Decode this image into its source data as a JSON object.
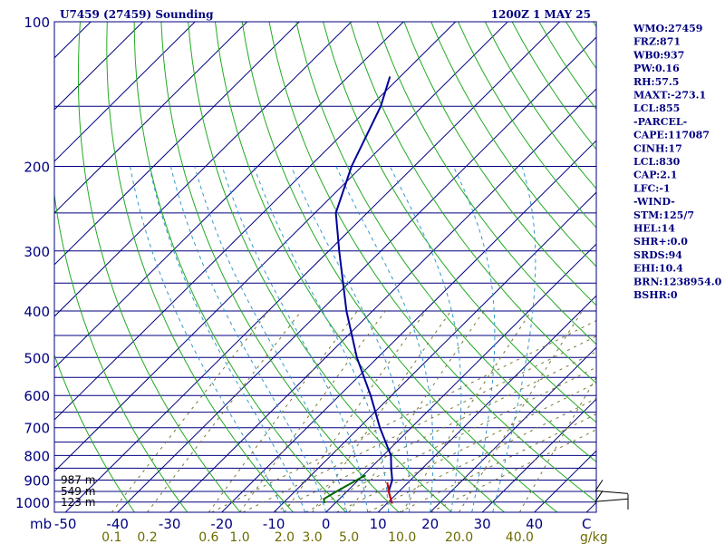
{
  "header": {
    "left_title": "U7459 (27459) Sounding",
    "right_title": "1200Z  1 MAY 25"
  },
  "indices": [
    "WMO:27459",
    "FRZ:871",
    "WB0:937",
    "PW:0.16",
    "RH:57.5",
    "MAXT:-273.1",
    "LCL:855",
    "-PARCEL-",
    "CAPE:117087",
    "CINH:17",
    "LCL:830",
    "CAP:2.1",
    "LFC:-1",
    "-WIND-",
    "STM:125/7",
    "HEL:14",
    "SHR+:0.0",
    "SRDS:94",
    "EHI:10.4",
    "BRN:1238954.0",
    "BSHR:0"
  ],
  "colors": {
    "frame": "#000080",
    "isobar": "#000080",
    "isotherm": "#000080",
    "dry_adiabat": "#22aa22",
    "moist_adiabat": "#3399cc",
    "mixing_ratio": "#777733",
    "temperature": "#000099",
    "parcel": "#cc0000",
    "dewpoint": "#006600",
    "wind": "#000000"
  },
  "chart_data": {
    "type": "line",
    "title": "U7459 (27459) Sounding",
    "subtitle": "1200Z  1 MAY 25",
    "x_axis": {
      "unit_label": "mb",
      "range": [
        -50,
        50
      ],
      "ticks": [
        -50,
        -40,
        -30,
        -20,
        -10,
        0,
        10,
        20,
        30,
        40,
        50
      ],
      "tick_labels": [
        "-50",
        "-40",
        "-30",
        "-20",
        "-10",
        "0",
        "10",
        "20",
        "30",
        "40",
        "C"
      ]
    },
    "y_axis": {
      "scale": "log",
      "range": [
        1050,
        100
      ],
      "ticks": [
        100,
        200,
        300,
        400,
        500,
        600,
        700,
        800,
        900,
        1000
      ],
      "tick_labels": [
        "100",
        "200",
        "300",
        "400",
        "500",
        "600",
        "700",
        "800",
        "900",
        "1000"
      ]
    },
    "mixing_ratio_labels": {
      "unit": "g/kg",
      "values": [
        0.1,
        0.2,
        0.6,
        1.0,
        2.0,
        3.0,
        5.0,
        10.0,
        20.0,
        40.0
      ],
      "labels": [
        "0.1",
        "0.2",
        "0.6",
        "1.0",
        "2.0",
        "3.0",
        "5.0",
        "10.0",
        "20.0",
        "40.0"
      ]
    },
    "height_labels": [
      {
        "p": 900,
        "text": "987 m"
      },
      {
        "p": 950,
        "text": "549 m"
      },
      {
        "p": 1000,
        "text": "123 m"
      }
    ],
    "series": [
      {
        "points": [
          [
            1007,
            11
          ],
          [
            950,
            8
          ],
          [
            900,
            6.5
          ],
          [
            850,
            4
          ],
          [
            800,
            1.5
          ],
          [
            700,
            -6
          ],
          [
            600,
            -14
          ],
          [
            500,
            -24
          ],
          [
            400,
            -35
          ],
          [
            300,
            -48
          ],
          [
            250,
            -56
          ],
          [
            200,
            -62
          ],
          [
            150,
            -68
          ],
          [
            130,
            -72
          ]
        ]
      },
      {
        "points": [
          [
            1007,
            11
          ],
          [
            950,
            8
          ],
          [
            910,
            6
          ]
        ]
      },
      {
        "points": [
          [
            1005,
            -2
          ],
          [
            985,
            -3
          ],
          [
            950,
            -2
          ],
          [
            920,
            -1
          ],
          [
            890,
            0
          ],
          [
            880,
            0.5
          ]
        ]
      }
    ],
    "wind_barbs": [
      {
        "p": 960,
        "dir": 270,
        "speed": 15
      },
      {
        "p": 985,
        "dir": 280,
        "speed": 10
      }
    ]
  }
}
